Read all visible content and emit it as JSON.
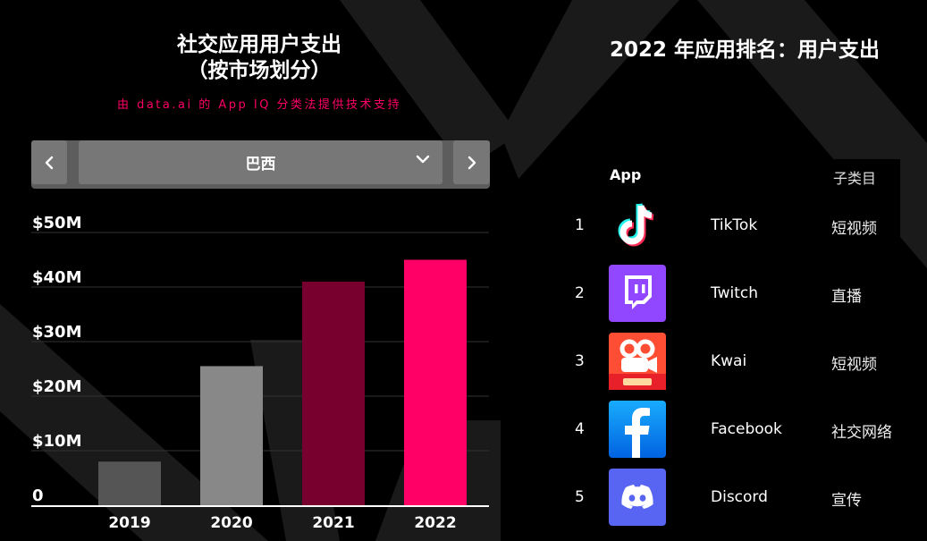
{
  "chart_panel": {
    "title_line1": "社交应用用户支出",
    "title_line2": "（按市场划分）",
    "subtitle": "由 data.ai 的 App IQ 分类法提供技术支持",
    "selector": {
      "prev_icon": "chevron-left-icon",
      "next_icon": "chevron-right-icon",
      "dropdown_icon": "chevron-down-icon",
      "selected_market": "巴西"
    }
  },
  "chart_data": {
    "type": "bar",
    "title": "社交应用用户支出（按市场划分）",
    "subtitle": "由 data.ai 的 App IQ 分类法提供技术支持",
    "categories": [
      "2019",
      "2020",
      "2021",
      "2022"
    ],
    "values": [
      8,
      25.5,
      41,
      45
    ],
    "bar_colors": [
      "#555555",
      "#888888",
      "#78002e",
      "#ff0066"
    ],
    "y_tick_values": [
      0,
      10,
      20,
      30,
      40,
      50
    ],
    "y_tick_labels": [
      "0",
      "$10M",
      "$20M",
      "$30M",
      "$40M",
      "$50M"
    ],
    "ylim": [
      0,
      50
    ],
    "xlabel": "",
    "ylabel": "",
    "grid": true,
    "legend": "none"
  },
  "ranking": {
    "title": "2022 年应用排名：用户支出",
    "headers": {
      "app": "App",
      "subcategory": "子类目"
    },
    "rows": [
      {
        "rank": "1",
        "name": "TikTok",
        "subcategory": "短视频",
        "icon": "tiktok-logo-icon"
      },
      {
        "rank": "2",
        "name": "Twitch",
        "subcategory": "直播",
        "icon": "twitch-logo-icon"
      },
      {
        "rank": "3",
        "name": "Kwai",
        "subcategory": "短视频",
        "icon": "kwai-logo-icon"
      },
      {
        "rank": "4",
        "name": "Facebook",
        "subcategory": "社交网络",
        "icon": "facebook-logo-icon"
      },
      {
        "rank": "5",
        "name": "Discord",
        "subcategory": "宣传",
        "icon": "discord-logo-icon"
      }
    ]
  },
  "colors": {
    "accent": "#ff0066",
    "background": "#000000",
    "selector_bg": "#5d5d5d",
    "selector_btn": "#777777"
  }
}
